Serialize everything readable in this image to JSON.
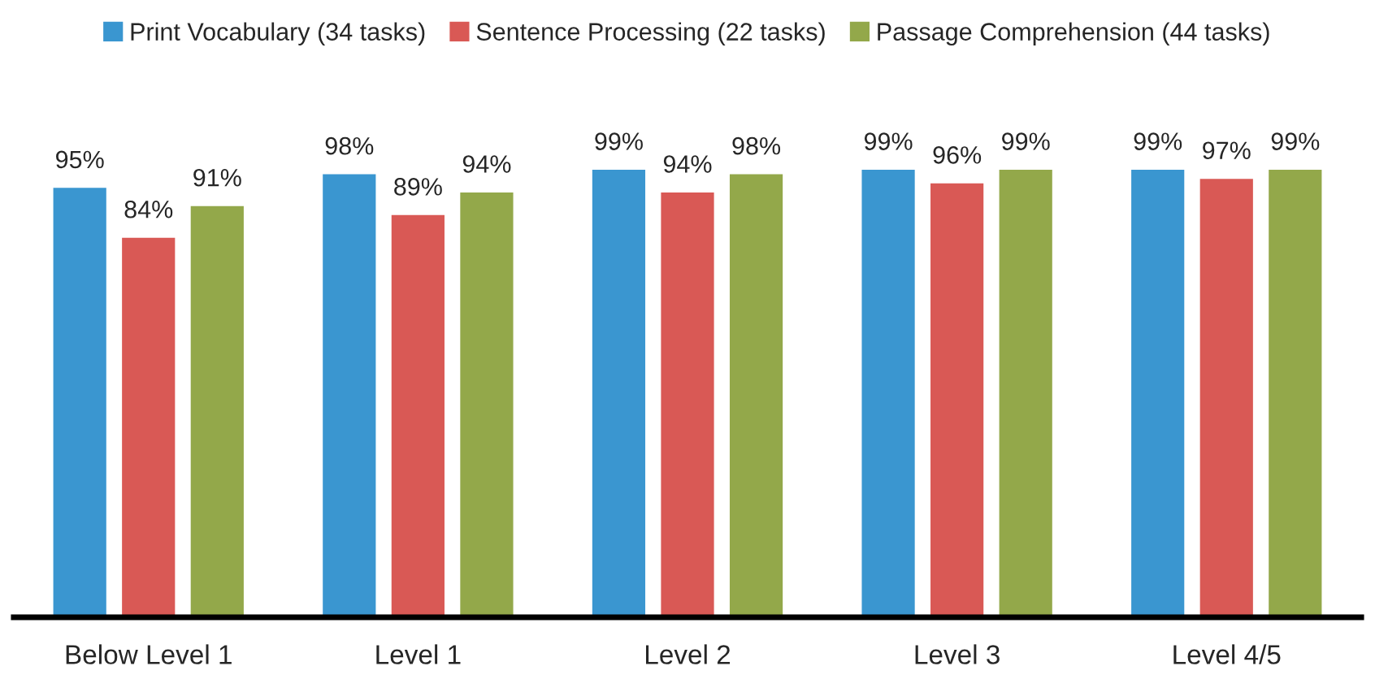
{
  "chart_data": {
    "type": "bar",
    "categories": [
      "Below Level 1",
      "Level 1",
      "Level 2",
      "Level 3",
      "Level 4/5"
    ],
    "series": [
      {
        "name": "Print Vocabulary (34 tasks)",
        "color": "#3a96d0",
        "values": [
          95,
          98,
          99,
          99,
          99
        ],
        "value_labels": [
          "95%",
          "98%",
          "99%",
          "99%",
          "99%"
        ]
      },
      {
        "name": "Sentence Processing (22 tasks)",
        "color": "#d95955",
        "values": [
          84,
          89,
          94,
          96,
          97
        ],
        "value_labels": [
          "84%",
          "89%",
          "94%",
          "96%",
          "97%"
        ]
      },
      {
        "name": "Passage Comprehension (44 tasks)",
        "color": "#93a84a",
        "values": [
          91,
          94,
          98,
          99,
          99
        ],
        "value_labels": [
          "91%",
          "94%",
          "98%",
          "99%",
          "99%"
        ]
      }
    ],
    "legend": "top",
    "grid": false,
    "tick_labels": "x"
  }
}
